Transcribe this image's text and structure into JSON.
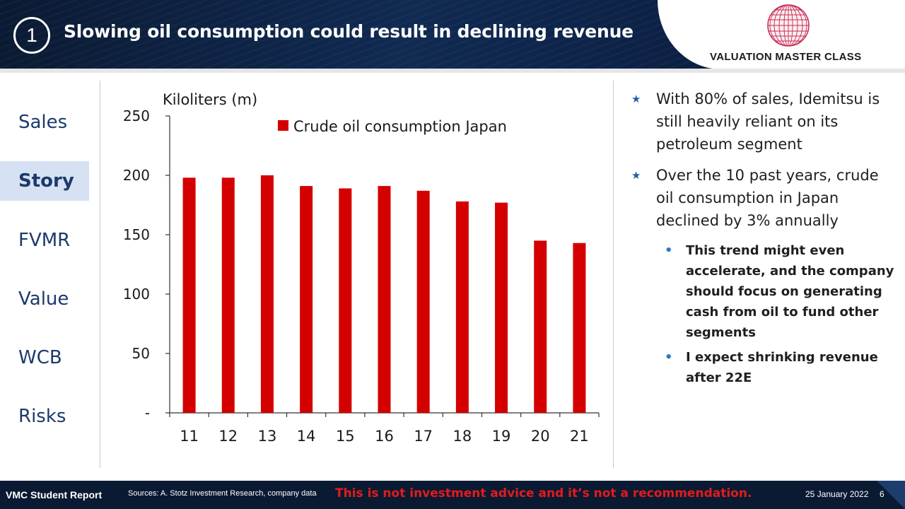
{
  "header": {
    "slide_number": "1",
    "title": "Slowing oil consumption could result in declining revenue",
    "logo_text": "VALUATION MASTER CLASS"
  },
  "nav": {
    "items": [
      {
        "label": "Sales",
        "active": false
      },
      {
        "label": "Story",
        "active": true
      },
      {
        "label": "FVMR",
        "active": false
      },
      {
        "label": "Value",
        "active": false
      },
      {
        "label": "WCB",
        "active": false
      },
      {
        "label": "Risks",
        "active": false
      }
    ]
  },
  "chart_data": {
    "type": "bar",
    "title": "",
    "ylabel": "Kiloliters (m)",
    "xlabel": "",
    "categories": [
      "11",
      "12",
      "13",
      "14",
      "15",
      "16",
      "17",
      "18",
      "19",
      "20",
      "21"
    ],
    "series": [
      {
        "name": "Crude oil consumption Japan",
        "color": "#d40000",
        "values": [
          198,
          198,
          200,
          191,
          189,
          191,
          187,
          178,
          177,
          145,
          143
        ]
      }
    ],
    "ylim": [
      0,
      250
    ],
    "yticks": [
      {
        "value": 0,
        "label": "-"
      },
      {
        "value": 50,
        "label": "50"
      },
      {
        "value": 100,
        "label": "100"
      },
      {
        "value": 150,
        "label": "150"
      },
      {
        "value": 200,
        "label": "200"
      },
      {
        "value": 250,
        "label": "250"
      }
    ],
    "grid": false,
    "legend_position": "top-center"
  },
  "bullets": [
    {
      "text": "With 80% of sales, Idemitsu is still heavily reliant on its petroleum segment",
      "sub": []
    },
    {
      "text": "Over the 10 past years, crude oil consumption in Japan declined by 3% annually",
      "sub": [
        "This trend might even accelerate, and the company should focus on generating cash from oil to fund other segments",
        "I expect shrinking revenue after 22E"
      ]
    }
  ],
  "footer": {
    "report_label": "VMC Student Report",
    "sources": "Sources: A. Stotz Investment Research, company data",
    "disclaimer": "This is not investment advice and it’s not a recommendation.",
    "date": "25 January 2022",
    "page": "6"
  },
  "colors": {
    "header_bg": "#0b1a33",
    "nav_text": "#1c3a6b",
    "nav_active_bg": "#d6e2f3",
    "bar": "#d40000",
    "disclaimer": "#e31b1b"
  }
}
